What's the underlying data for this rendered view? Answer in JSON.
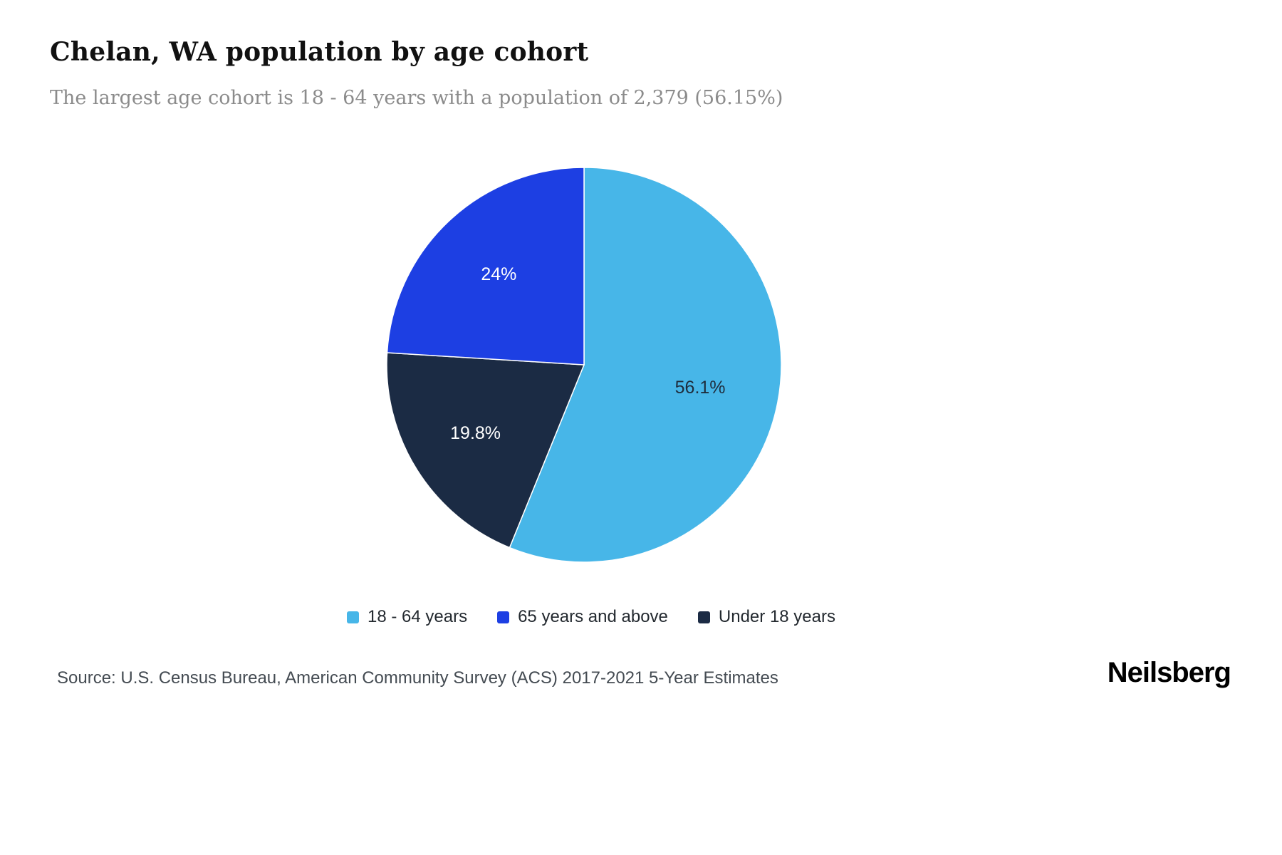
{
  "header": {
    "title": "Chelan, WA population by age cohort",
    "subtitle": "The largest age cohort is 18 - 64 years with a population of 2,379 (56.15%)"
  },
  "chart_data": {
    "type": "pie",
    "title": "Chelan, WA population by age cohort",
    "start_angle_deg": 0,
    "direction": "clockwise",
    "legend_position": "bottom",
    "slices": [
      {
        "label": "18 - 64 years",
        "value": 56.1,
        "display": "56.1%",
        "color": "#47b6e8",
        "text_color": "#1f2d3d",
        "label_radius": 0.6
      },
      {
        "label": "Under 18 years",
        "value": 19.8,
        "display": "19.8%",
        "color": "#1b2b44",
        "text_color": "#ffffff",
        "label_radius": 0.65
      },
      {
        "label": "65 years and above",
        "value": 24.0,
        "display": "24%",
        "color": "#1d3fe3",
        "text_color": "#ffffff",
        "label_radius": 0.63
      }
    ]
  },
  "legend": {
    "items": [
      {
        "label": "18 - 64 years",
        "color": "#47b6e8"
      },
      {
        "label": "65 years and above",
        "color": "#1d3fe3"
      },
      {
        "label": "Under 18 years",
        "color": "#1b2b44"
      }
    ]
  },
  "footer": {
    "source": "Source: U.S. Census Bureau, American Community Survey (ACS) 2017-2021 5-Year Estimates",
    "brand": "Neilsberg"
  }
}
